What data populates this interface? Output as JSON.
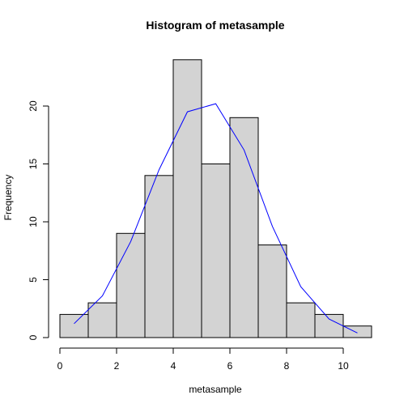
{
  "chart_data": {
    "type": "bar",
    "subtype": "histogram",
    "title": "Histogram of metasample",
    "xlabel": "metasample",
    "ylabel": "Frequency",
    "bins": [
      {
        "from": 0,
        "to": 1,
        "count": 2
      },
      {
        "from": 1,
        "to": 2,
        "count": 3
      },
      {
        "from": 2,
        "to": 3,
        "count": 9
      },
      {
        "from": 3,
        "to": 4,
        "count": 14
      },
      {
        "from": 4,
        "to": 5,
        "count": 24
      },
      {
        "from": 5,
        "to": 6,
        "count": 15
      },
      {
        "from": 6,
        "to": 7,
        "count": 19
      },
      {
        "from": 7,
        "to": 8,
        "count": 8
      },
      {
        "from": 8,
        "to": 9,
        "count": 3
      },
      {
        "from": 9,
        "to": 10,
        "count": 2
      },
      {
        "from": 10,
        "to": 11,
        "count": 1
      }
    ],
    "overlay_line": {
      "color": "#0000ff",
      "x": [
        0.5,
        1.5,
        2.5,
        3.5,
        4.5,
        5.5,
        6.5,
        7.5,
        8.5,
        9.5,
        10.5
      ],
      "y": [
        1.2,
        3.6,
        8.3,
        14.5,
        19.5,
        20.2,
        16.2,
        9.6,
        4.4,
        1.6,
        0.4
      ]
    },
    "xlim": [
      0,
      11
    ],
    "ylim": [
      0,
      25
    ],
    "x_ticks": [
      0,
      2,
      4,
      6,
      8,
      10
    ],
    "y_ticks": [
      0,
      5,
      10,
      15,
      20
    ],
    "bar_fill": "#d3d3d3",
    "grid": false,
    "legend": "none"
  }
}
